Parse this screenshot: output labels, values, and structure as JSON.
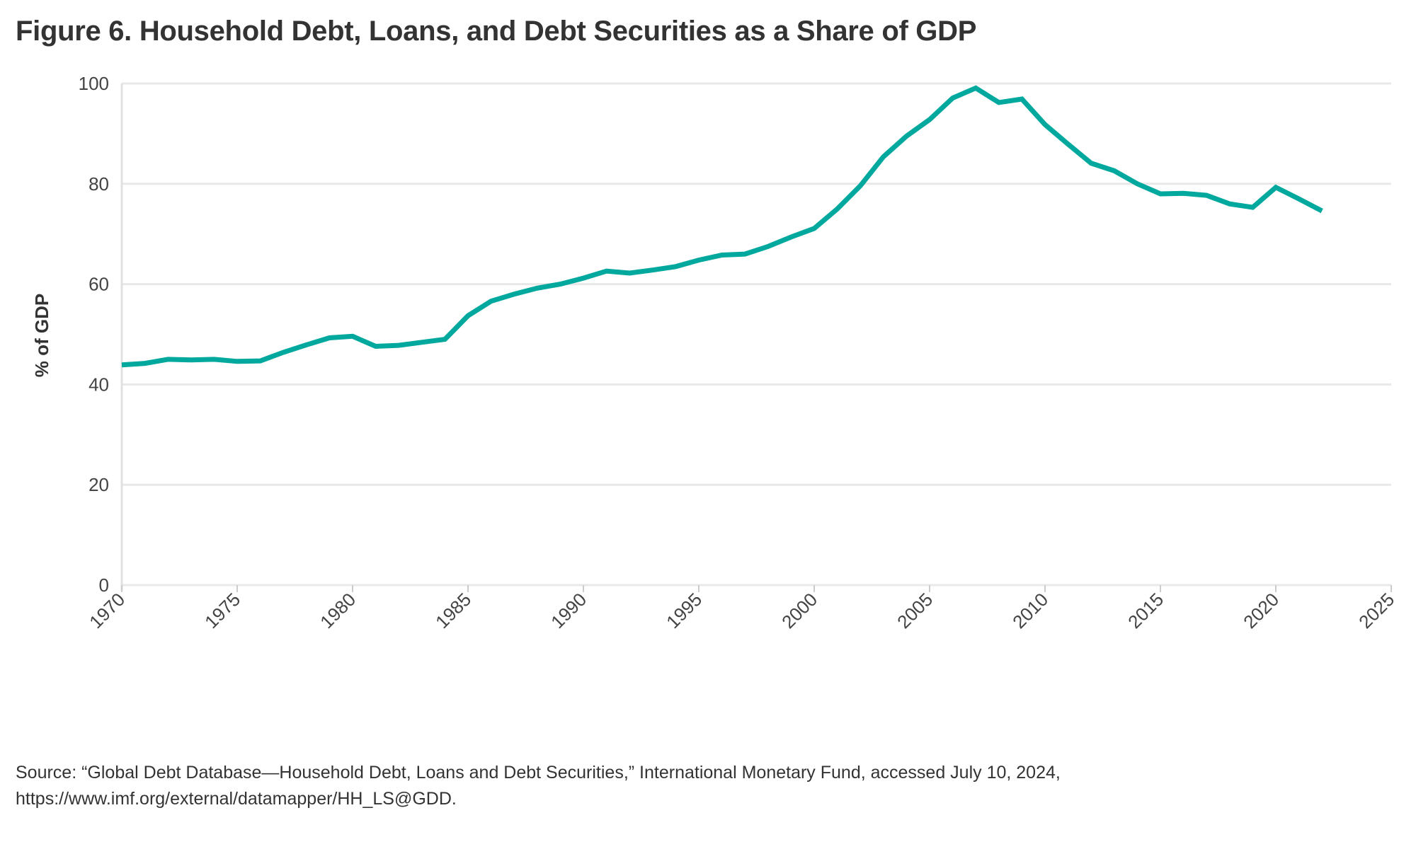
{
  "chart_data": {
    "type": "line",
    "title": "Figure 6. Household Debt, Loans, and Debt Securities as a Share of GDP",
    "xlabel": "",
    "ylabel": "% of GDP",
    "xlim": [
      1970,
      2025
    ],
    "ylim": [
      0,
      100
    ],
    "xticks": [
      "1970",
      "1975",
      "1980",
      "1985",
      "1990",
      "1995",
      "2000",
      "2005",
      "2010",
      "2015",
      "2020",
      "2025"
    ],
    "yticks": [
      "0",
      "20",
      "40",
      "60",
      "80",
      "100"
    ],
    "grid": true,
    "color": "#00A89D",
    "series": [
      {
        "name": "Household debt, loans and debt securities",
        "x": [
          1970,
          1971,
          1972,
          1973,
          1974,
          1975,
          1976,
          1977,
          1978,
          1979,
          1980,
          1981,
          1982,
          1983,
          1984,
          1985,
          1986,
          1987,
          1988,
          1989,
          1990,
          1991,
          1992,
          1993,
          1994,
          1995,
          1996,
          1997,
          1998,
          1999,
          2000,
          2001,
          2002,
          2003,
          2004,
          2005,
          2006,
          2007,
          2008,
          2009,
          2010,
          2011,
          2012,
          2013,
          2014,
          2015,
          2016,
          2017,
          2018,
          2019,
          2020,
          2021,
          2022
        ],
        "values": [
          43.9,
          44.2,
          45.0,
          44.9,
          45.0,
          44.6,
          44.7,
          46.4,
          47.9,
          49.3,
          49.6,
          47.6,
          47.8,
          48.4,
          49.0,
          53.7,
          56.6,
          58.0,
          59.2,
          60.0,
          61.2,
          62.6,
          62.2,
          62.8,
          63.5,
          64.8,
          65.8,
          66.0,
          67.5,
          69.4,
          71.1,
          75.0,
          79.6,
          85.4,
          89.5,
          92.8,
          97.1,
          99.1,
          96.2,
          96.9,
          91.8,
          87.9,
          84.1,
          82.6,
          80.0,
          78.0,
          78.1,
          77.7,
          76.0,
          75.3,
          79.3,
          77.0,
          74.6
        ]
      }
    ]
  },
  "source": {
    "line1": "Source: “Global Debt Database—Household Debt, Loans and Debt Securities,” International Monetary Fund, accessed July 10, 2024,",
    "line2": "https://www.imf.org/external/datamapper/HH_LS@GDD."
  }
}
